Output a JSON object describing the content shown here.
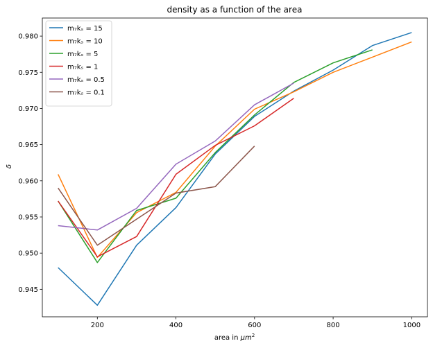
{
  "chart_data": {
    "type": "line",
    "title": "density as a function of the area",
    "xlabel": "area in μm²",
    "ylabel": "δ",
    "xlim": [
      60,
      1040
    ],
    "ylim": [
      0.9412,
      0.9825
    ],
    "xticks": [
      200,
      400,
      600,
      800,
      1000
    ],
    "xtick_labels": [
      "200",
      "400",
      "600",
      "800",
      "1000"
    ],
    "yticks": [
      0.945,
      0.95,
      0.955,
      0.96,
      0.965,
      0.97,
      0.975,
      0.98
    ],
    "ytick_labels": [
      "0.945",
      "0.950",
      "0.955",
      "0.960",
      "0.965",
      "0.970",
      "0.975",
      "0.980"
    ],
    "grid": false,
    "legend_position": "top-left",
    "series": [
      {
        "name": "m₇kₛ = 15",
        "color": "#1f77b4",
        "x": [
          100,
          200,
          300,
          400,
          500,
          600,
          700,
          800,
          900,
          1000
        ],
        "y": [
          0.948,
          0.9428,
          0.9511,
          0.9563,
          0.9637,
          0.9689,
          0.9724,
          0.9753,
          0.9787,
          0.9805
        ]
      },
      {
        "name": "m₇kₛ = 10",
        "color": "#ff7f0e",
        "x": [
          100,
          200,
          300,
          400,
          500,
          600,
          700,
          800,
          900,
          1000
        ],
        "y": [
          0.9609,
          0.9494,
          0.9556,
          0.9584,
          0.9648,
          0.9699,
          0.9723,
          0.975,
          0.9771,
          0.9792
        ]
      },
      {
        "name": "m₇kₛ = 5",
        "color": "#2ca02c",
        "x": [
          100,
          200,
          300,
          400,
          500,
          600,
          700,
          800,
          900
        ],
        "y": [
          0.9572,
          0.9487,
          0.9559,
          0.9576,
          0.9639,
          0.9691,
          0.9736,
          0.9763,
          0.9781
        ]
      },
      {
        "name": "m₇kₛ = 1",
        "color": "#d62728",
        "x": [
          100,
          200,
          300,
          400,
          500,
          600,
          700
        ],
        "y": [
          0.9572,
          0.9495,
          0.9523,
          0.9609,
          0.9649,
          0.9676,
          0.9714
        ]
      },
      {
        "name": "m₇kₛ = 0.5",
        "color": "#9467bd",
        "x": [
          100,
          200,
          300,
          400,
          500,
          600,
          700
        ],
        "y": [
          0.9538,
          0.9532,
          0.9562,
          0.9623,
          0.9655,
          0.9705,
          0.9735
        ]
      },
      {
        "name": "m₇kₛ = 0.1",
        "color": "#8c564b",
        "x": [
          100,
          200,
          300,
          400,
          500,
          600
        ],
        "y": [
          0.959,
          0.9511,
          0.9547,
          0.9583,
          0.9592,
          0.9648
        ]
      }
    ]
  }
}
